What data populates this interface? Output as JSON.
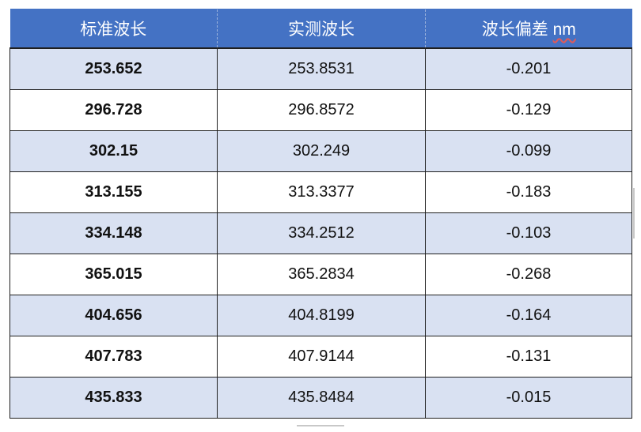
{
  "table": {
    "headers": [
      "标准波长",
      "实测波长",
      "波长偏差"
    ],
    "header_unit": "nm",
    "rows": [
      [
        "253.652",
        "253.8531",
        "-0.201"
      ],
      [
        "296.728",
        "296.8572",
        "-0.129"
      ],
      [
        "302.15",
        "302.249",
        "-0.099"
      ],
      [
        "313.155",
        "313.3377",
        "-0.183"
      ],
      [
        "334.148",
        "334.2512",
        "-0.103"
      ],
      [
        "365.015",
        "365.2834",
        "-0.268"
      ],
      [
        "404.656",
        "404.8199",
        "-0.164"
      ],
      [
        "407.783",
        "407.9144",
        "-0.131"
      ],
      [
        "435.833",
        "435.8484",
        "-0.015"
      ]
    ]
  },
  "colors": {
    "header_bg": "#4472c4",
    "header_text": "#ffffff",
    "band_row_bg": "#d9e1f2",
    "plain_row_bg": "#ffffff"
  }
}
